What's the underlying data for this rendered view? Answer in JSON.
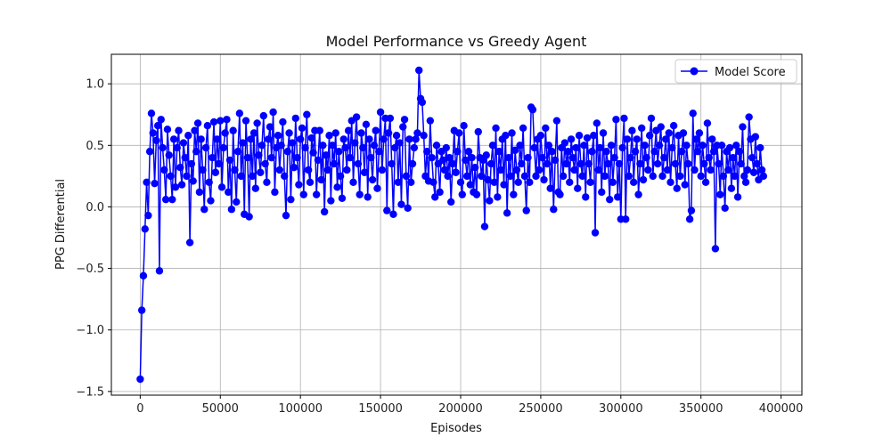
{
  "chart_data": {
    "type": "line",
    "title": "Model Performance vs Greedy Agent",
    "xlabel": "Episodes",
    "ylabel": "PPG Differential",
    "xlim": [
      -18000,
      413000
    ],
    "ylim": [
      -1.53,
      1.24
    ],
    "grid": true,
    "legend_position": "upper-right",
    "xticks": [
      0,
      50000,
      100000,
      150000,
      200000,
      250000,
      300000,
      350000,
      400000
    ],
    "yticks": [
      -1.5,
      -1.0,
      -0.5,
      0.0,
      0.5,
      1.0
    ],
    "series": [
      {
        "name": "Model Score",
        "color": "#0000ff",
        "marker": "circle",
        "x_start": 0,
        "x_step": 1000,
        "values": [
          -1.4,
          -0.84,
          -0.56,
          -0.18,
          0.2,
          -0.07,
          0.45,
          0.76,
          0.6,
          0.19,
          0.54,
          0.66,
          -0.52,
          0.71,
          0.48,
          0.3,
          0.06,
          0.63,
          0.42,
          0.25,
          0.06,
          0.55,
          0.16,
          0.48,
          0.62,
          0.32,
          0.18,
          0.52,
          0.4,
          0.25,
          0.58,
          -0.29,
          0.35,
          0.21,
          0.62,
          0.45,
          0.68,
          0.12,
          0.55,
          0.3,
          -0.02,
          0.48,
          0.66,
          0.2,
          0.05,
          0.4,
          0.69,
          0.28,
          0.55,
          0.35,
          0.7,
          0.16,
          0.48,
          0.6,
          0.71,
          0.12,
          0.38,
          -0.02,
          0.62,
          0.3,
          0.04,
          0.45,
          0.76,
          0.25,
          0.52,
          -0.06,
          0.7,
          0.4,
          -0.08,
          0.55,
          0.25,
          0.6,
          0.15,
          0.68,
          0.42,
          0.28,
          0.5,
          0.74,
          0.35,
          0.2,
          0.55,
          0.65,
          0.4,
          0.77,
          0.12,
          0.48,
          0.58,
          0.3,
          0.5,
          0.69,
          0.25,
          -0.07,
          0.45,
          0.6,
          0.06,
          0.52,
          0.32,
          0.72,
          0.4,
          0.18,
          0.55,
          0.64,
          0.1,
          0.48,
          0.75,
          0.3,
          0.2,
          0.56,
          0.44,
          0.62,
          0.1,
          0.38,
          0.62,
          0.22,
          0.5,
          -0.04,
          0.42,
          0.3,
          0.58,
          0.05,
          0.5,
          0.35,
          0.6,
          0.16,
          0.45,
          0.25,
          0.07,
          0.55,
          0.48,
          0.3,
          0.62,
          0.4,
          0.7,
          0.2,
          0.52,
          0.73,
          0.35,
          0.1,
          0.6,
          0.48,
          0.28,
          0.67,
          0.08,
          0.55,
          0.4,
          0.22,
          0.5,
          0.62,
          0.15,
          0.45,
          0.77,
          0.3,
          0.55,
          0.72,
          -0.03,
          0.6,
          0.72,
          0.35,
          -0.06,
          0.48,
          0.58,
          0.2,
          0.52,
          0.02,
          0.65,
          0.71,
          0.25,
          -0.01,
          0.55,
          0.2,
          0.35,
          0.48,
          0.55,
          0.6,
          1.11,
          0.88,
          0.85,
          0.58,
          0.25,
          0.45,
          0.21,
          0.7,
          0.4,
          0.2,
          0.08,
          0.5,
          0.35,
          0.12,
          0.45,
          0.38,
          0.3,
          0.48,
          0.25,
          0.4,
          0.04,
          0.35,
          0.62,
          0.28,
          0.45,
          0.6,
          0.2,
          0.1,
          0.66,
          0.38,
          0.25,
          0.45,
          0.18,
          0.4,
          0.12,
          0.32,
          0.1,
          0.61,
          0.4,
          0.25,
          0.38,
          -0.16,
          0.42,
          0.22,
          0.05,
          0.35,
          0.5,
          0.2,
          0.64,
          0.08,
          0.45,
          0.3,
          0.55,
          0.18,
          0.58,
          -0.05,
          0.4,
          0.25,
          0.6,
          0.1,
          0.46,
          0.3,
          0.2,
          0.5,
          0.35,
          0.64,
          0.25,
          -0.03,
          0.4,
          0.2,
          0.81,
          0.79,
          0.48,
          0.25,
          0.55,
          0.3,
          0.58,
          0.4,
          0.22,
          0.64,
          0.35,
          0.5,
          0.15,
          0.45,
          -0.02,
          0.38,
          0.7,
          0.12,
          0.1,
          0.48,
          0.25,
          0.52,
          0.35,
          0.45,
          0.2,
          0.55,
          0.4,
          0.3,
          0.48,
          0.15,
          0.58,
          0.35,
          0.25,
          0.5,
          0.08,
          0.56,
          0.35,
          0.2,
          0.45,
          0.58,
          -0.21,
          0.68,
          0.3,
          0.48,
          0.12,
          0.6,
          0.25,
          0.45,
          0.35,
          0.06,
          0.5,
          0.2,
          0.4,
          0.71,
          0.08,
          0.35,
          -0.1,
          0.48,
          0.72,
          -0.1,
          0.55,
          0.25,
          0.4,
          0.62,
          0.2,
          0.45,
          0.55,
          0.1,
          0.35,
          0.64,
          0.22,
          0.5,
          0.4,
          0.3,
          0.58,
          0.72,
          0.25,
          0.45,
          0.62,
          0.35,
          0.5,
          0.65,
          0.25,
          0.4,
          0.55,
          0.3,
          0.6,
          0.2,
          0.48,
          0.66,
          0.35,
          0.15,
          0.58,
          0.25,
          0.45,
          0.6,
          0.18,
          0.5,
          0.35,
          -0.1,
          -0.03,
          0.76,
          0.3,
          0.55,
          0.45,
          0.6,
          0.25,
          0.5,
          0.35,
          0.2,
          0.68,
          0.4,
          0.3,
          0.55,
          0.45,
          -0.34,
          0.5,
          0.35,
          0.1,
          0.5,
          0.25,
          -0.01,
          0.45,
          0.3,
          0.48,
          0.15,
          0.4,
          0.25,
          0.5,
          0.08,
          0.45,
          0.35,
          0.65,
          0.25,
          0.2,
          0.3,
          0.73,
          0.55,
          0.4,
          0.28,
          0.57,
          0.35,
          0.22,
          0.48,
          0.3,
          0.25
        ]
      }
    ]
  }
}
